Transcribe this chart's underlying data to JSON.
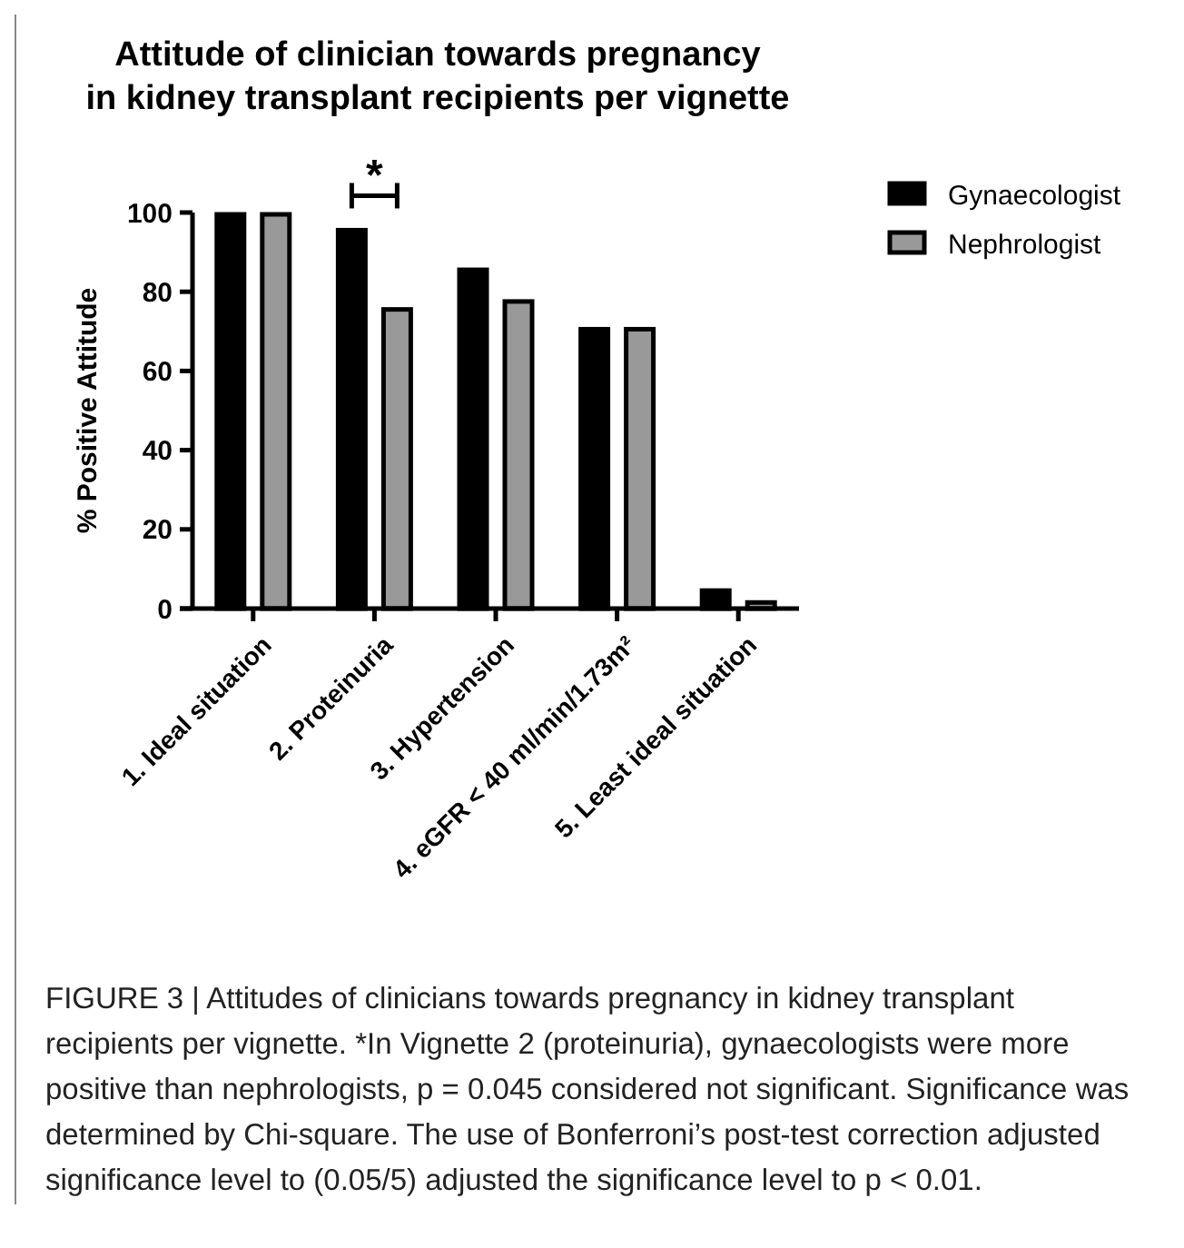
{
  "chart_data": {
    "type": "bar",
    "title": "Attitude of clinician towards pregnancy\nin kidney transplant recipients per vignette",
    "ylabel": "% Positive Attitude",
    "categories": [
      "1. Ideal situation",
      "2. Proteinuria",
      "3. Hypertension",
      "4. eGFR < 40 ml/min/1.73m²",
      "5. Least ideal situation"
    ],
    "series": [
      {
        "name": "Gynaecologist",
        "color": "#000000",
        "values": [
          100,
          96,
          86,
          71,
          5
        ]
      },
      {
        "name": "Nephrologist",
        "color": "#999999",
        "values": [
          100,
          76,
          78,
          71,
          2
        ]
      }
    ],
    "ylim": [
      0,
      100
    ],
    "yticks": [
      0,
      20,
      40,
      60,
      80,
      100
    ],
    "grid": false,
    "legend": "right",
    "annotations": [
      "*",
      "FIGURE 3 | Attitudes of clinicians towards pregnancy in kidney transplant recipients per vignette. *In Vignette 2 (proteinuria), gynaecologists were more positive than nephrologists, p = 0.045 considered not significant. Significance was determined by Chi-square. The use of Bonferroni’s post-test correction adjusted significance level to (0.05/5) adjusted the significance level to p < 0.01."
    ]
  }
}
